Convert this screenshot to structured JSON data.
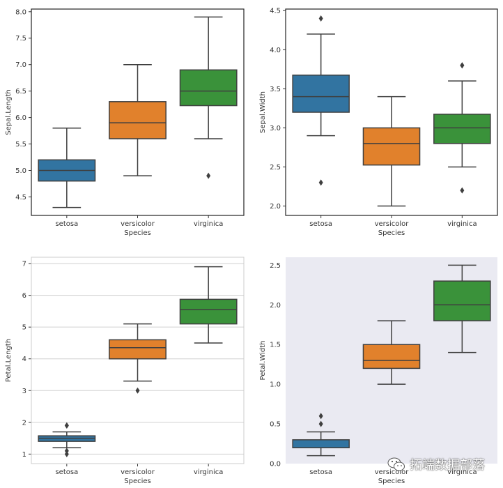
{
  "chart_data": [
    {
      "type": "box",
      "style": "white",
      "xlabel": "Species",
      "ylabel": "Sepal.Length",
      "categories": [
        "setosa",
        "versicolor",
        "virginica"
      ],
      "ylim": [
        4.15,
        8.05
      ],
      "yticks": [
        "4.5",
        "5.0",
        "5.5",
        "6.0",
        "6.5",
        "7.0",
        "7.5",
        "8.0"
      ],
      "grid": false,
      "boxes": [
        {
          "category": "setosa",
          "whisker_low": 4.3,
          "q1": 4.8,
          "median": 5.0,
          "q3": 5.2,
          "whisker_high": 5.8,
          "outliers": []
        },
        {
          "category": "versicolor",
          "whisker_low": 4.9,
          "q1": 5.6,
          "median": 5.9,
          "q3": 6.3,
          "whisker_high": 7.0,
          "outliers": []
        },
        {
          "category": "virginica",
          "whisker_low": 5.6,
          "q1": 6.225,
          "median": 6.5,
          "q3": 6.9,
          "whisker_high": 7.9,
          "outliers": [
            4.9
          ]
        }
      ]
    },
    {
      "type": "box",
      "style": "white",
      "xlabel": "Species",
      "ylabel": "Sepal.Width",
      "categories": [
        "setosa",
        "versicolor",
        "virginica"
      ],
      "ylim": [
        1.88,
        4.52
      ],
      "yticks": [
        "2.0",
        "2.5",
        "3.0",
        "3.5",
        "4.0",
        "4.5"
      ],
      "grid": false,
      "boxes": [
        {
          "category": "setosa",
          "whisker_low": 2.9,
          "q1": 3.2,
          "median": 3.4,
          "q3": 3.675,
          "whisker_high": 4.2,
          "outliers": [
            4.4,
            2.3
          ]
        },
        {
          "category": "versicolor",
          "whisker_low": 2.0,
          "q1": 2.525,
          "median": 2.8,
          "q3": 3.0,
          "whisker_high": 3.4,
          "outliers": []
        },
        {
          "category": "virginica",
          "whisker_low": 2.5,
          "q1": 2.8,
          "median": 3.0,
          "q3": 3.175,
          "whisker_high": 3.6,
          "outliers": [
            3.8,
            3.8,
            2.2
          ]
        }
      ]
    },
    {
      "type": "box",
      "style": "whitegrid",
      "xlabel": "Species",
      "ylabel": "Petal.Length",
      "categories": [
        "setosa",
        "versicolor",
        "virginica"
      ],
      "ylim": [
        0.7,
        7.2
      ],
      "yticks": [
        "1",
        "2",
        "3",
        "4",
        "5",
        "6",
        "7"
      ],
      "grid": true,
      "boxes": [
        {
          "category": "setosa",
          "whisker_low": 1.2,
          "q1": 1.4,
          "median": 1.5,
          "q3": 1.575,
          "whisker_high": 1.7,
          "outliers": [
            1.9,
            1.9,
            1.1,
            1.0
          ]
        },
        {
          "category": "versicolor",
          "whisker_low": 3.3,
          "q1": 4.0,
          "median": 4.35,
          "q3": 4.6,
          "whisker_high": 5.1,
          "outliers": [
            3.0
          ]
        },
        {
          "category": "virginica",
          "whisker_low": 4.5,
          "q1": 5.1,
          "median": 5.55,
          "q3": 5.875,
          "whisker_high": 6.9,
          "outliers": []
        }
      ]
    },
    {
      "type": "box",
      "style": "darkgrid",
      "xlabel": "Species",
      "ylabel": "Petal.Width",
      "categories": [
        "setosa",
        "versicolor",
        "virginica"
      ],
      "ylim": [
        0.0,
        2.6
      ],
      "yticks": [
        "0.0",
        "0.5",
        "1.0",
        "1.5",
        "2.0",
        "2.5"
      ],
      "grid": false,
      "boxes": [
        {
          "category": "setosa",
          "whisker_low": 0.1,
          "q1": 0.2,
          "median": 0.2,
          "q3": 0.3,
          "whisker_high": 0.4,
          "outliers": [
            0.6,
            0.5
          ]
        },
        {
          "category": "versicolor",
          "whisker_low": 1.0,
          "q1": 1.2,
          "median": 1.3,
          "q3": 1.5,
          "whisker_high": 1.8,
          "outliers": []
        },
        {
          "category": "virginica",
          "whisker_low": 1.4,
          "q1": 1.8,
          "median": 2.0,
          "q3": 2.3,
          "whisker_high": 2.5,
          "outliers": []
        }
      ]
    }
  ],
  "colors": {
    "setosa": "#3274a1",
    "versicolor": "#e1812c",
    "virginica": "#3a923a",
    "line": "#3f3f3f",
    "dark_background": "#eaeaf2"
  },
  "watermark": {
    "text": "拓端数据部落",
    "icon": "wechat-icon"
  }
}
